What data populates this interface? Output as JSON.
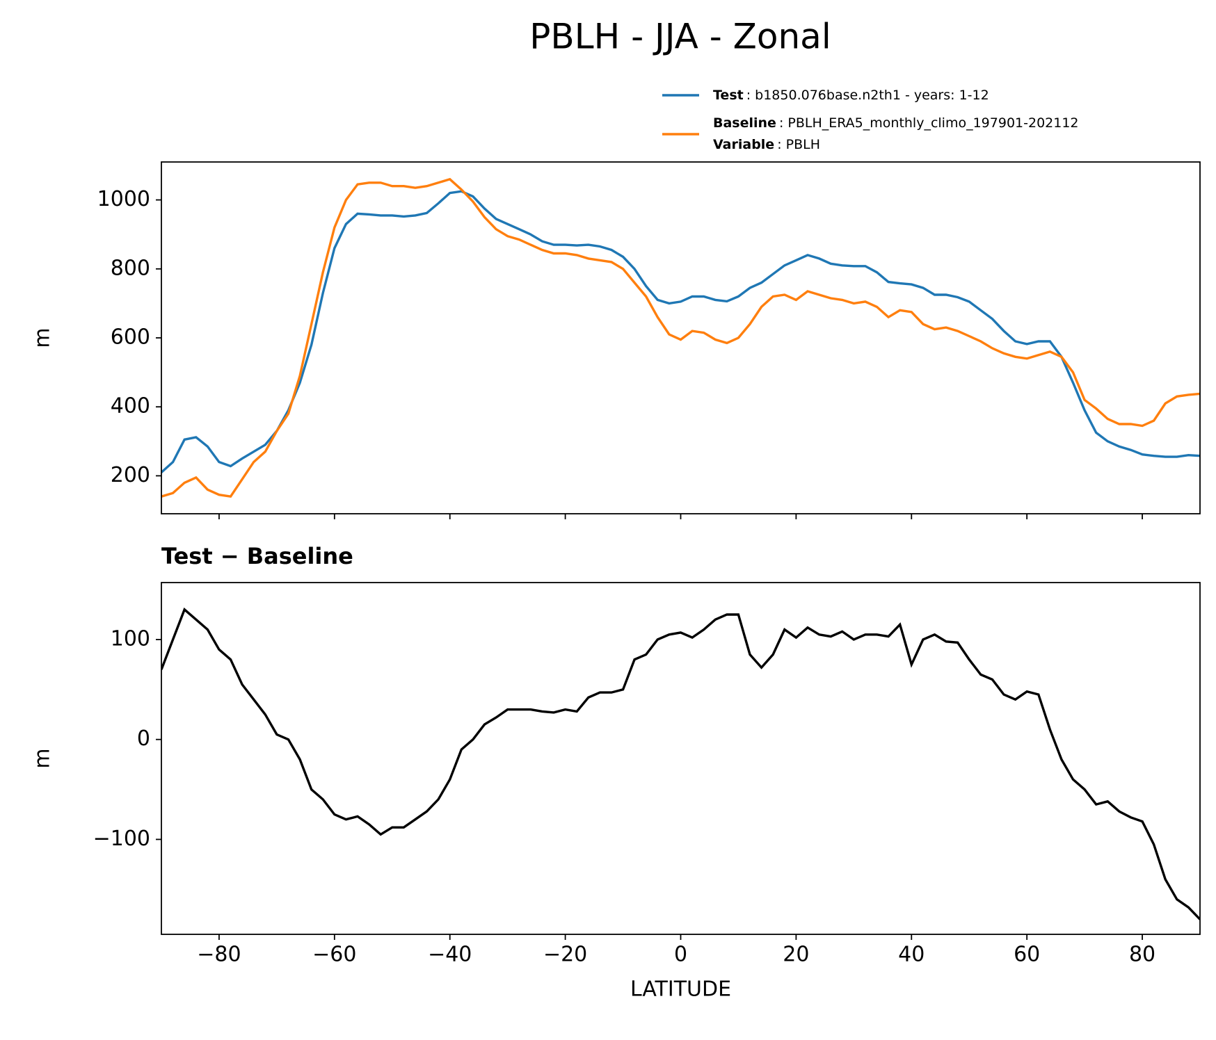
{
  "chart_data": [
    {
      "type": "line",
      "title": "PBLH - JJA - Zonal",
      "ylabel": "m",
      "x": [
        -90,
        -88,
        -86,
        -84,
        -82,
        -80,
        -78,
        -76,
        -74,
        -72,
        -70,
        -68,
        -66,
        -64,
        -62,
        -60,
        -58,
        -56,
        -54,
        -52,
        -50,
        -48,
        -46,
        -44,
        -42,
        -40,
        -38,
        -36,
        -34,
        -32,
        -30,
        -28,
        -26,
        -24,
        -22,
        -20,
        -18,
        -16,
        -14,
        -12,
        -10,
        -8,
        -6,
        -4,
        -2,
        0,
        2,
        4,
        6,
        8,
        10,
        12,
        14,
        16,
        18,
        20,
        22,
        24,
        26,
        28,
        30,
        32,
        34,
        36,
        38,
        40,
        42,
        44,
        46,
        48,
        50,
        52,
        54,
        56,
        58,
        60,
        62,
        64,
        66,
        68,
        70,
        72,
        74,
        76,
        78,
        80,
        82,
        84,
        86,
        88,
        90
      ],
      "series": [
        {
          "name": "Test",
          "label": ": b1850.076base.n2th1 - years: 1-12",
          "color": "#1f77b4",
          "values": [
            210,
            240,
            305,
            312,
            285,
            240,
            228,
            250,
            270,
            290,
            330,
            390,
            470,
            580,
            730,
            860,
            930,
            960,
            958,
            955,
            955,
            952,
            955,
            962,
            990,
            1020,
            1025,
            1010,
            975,
            945,
            930,
            915,
            900,
            880,
            870,
            870,
            868,
            870,
            865,
            855,
            835,
            800,
            750,
            710,
            700,
            705,
            720,
            720,
            710,
            706,
            720,
            745,
            760,
            785,
            810,
            825,
            840,
            830,
            815,
            810,
            808,
            808,
            790,
            762,
            758,
            755,
            745,
            725,
            725,
            718,
            705,
            680,
            655,
            620,
            590,
            582,
            590,
            590,
            545,
            470,
            390,
            325,
            300,
            285,
            275,
            262,
            258,
            255,
            255,
            260,
            258
          ]
        },
        {
          "name": "Baseline",
          "label": ": PBLH_ERA5_monthly_climo_197901-202112",
          "color": "#ff7f0e",
          "values": [
            140,
            150,
            180,
            195,
            160,
            145,
            140,
            190,
            240,
            270,
            330,
            380,
            490,
            640,
            790,
            920,
            1000,
            1045,
            1050,
            1050,
            1040,
            1040,
            1035,
            1040,
            1050,
            1060,
            1030,
            995,
            950,
            915,
            895,
            885,
            870,
            855,
            845,
            845,
            840,
            830,
            825,
            820,
            800,
            760,
            720,
            660,
            610,
            595,
            620,
            615,
            595,
            585,
            600,
            640,
            690,
            720,
            725,
            710,
            735,
            725,
            715,
            710,
            700,
            705,
            690,
            660,
            680,
            675,
            640,
            625,
            630,
            620,
            605,
            590,
            570,
            555,
            545,
            540,
            550,
            560,
            545,
            500,
            420,
            395,
            365,
            350,
            350,
            345,
            360,
            410,
            430,
            435,
            438
          ]
        }
      ],
      "legend_note": {
        "name": "Variable",
        "label": ": PBLH"
      },
      "xlim": [
        -90,
        90
      ],
      "xticks": [
        -80,
        -60,
        -40,
        -20,
        0,
        20,
        40,
        60,
        80
      ],
      "ylim": [
        90,
        1110
      ],
      "yticks": [
        200,
        400,
        600,
        800,
        1000
      ]
    },
    {
      "type": "line",
      "title": "Test − Baseline",
      "ylabel": "m",
      "xlabel": "LATITUDE",
      "x": [
        -90,
        -88,
        -86,
        -84,
        -82,
        -80,
        -78,
        -76,
        -74,
        -72,
        -70,
        -68,
        -66,
        -64,
        -62,
        -60,
        -58,
        -56,
        -54,
        -52,
        -50,
        -48,
        -46,
        -44,
        -42,
        -40,
        -38,
        -36,
        -34,
        -32,
        -30,
        -28,
        -26,
        -24,
        -22,
        -20,
        -18,
        -16,
        -14,
        -12,
        -10,
        -8,
        -6,
        -4,
        -2,
        0,
        2,
        4,
        6,
        8,
        10,
        12,
        14,
        16,
        18,
        20,
        22,
        24,
        26,
        28,
        30,
        32,
        34,
        36,
        38,
        40,
        42,
        44,
        46,
        48,
        50,
        52,
        54,
        56,
        58,
        60,
        62,
        64,
        66,
        68,
        70,
        72,
        74,
        76,
        78,
        80,
        82,
        84,
        86,
        88,
        90
      ],
      "series": [
        {
          "color": "#000000",
          "values": [
            70,
            100,
            130,
            120,
            110,
            90,
            80,
            55,
            40,
            25,
            5,
            0,
            -20,
            -50,
            -60,
            -75,
            -80,
            -77,
            -85,
            -95,
            -88,
            -88,
            -80,
            -72,
            -60,
            -40,
            -10,
            0,
            15,
            22,
            30,
            30,
            30,
            28,
            27,
            30,
            28,
            42,
            47,
            47,
            50,
            80,
            85,
            100,
            105,
            107,
            102,
            110,
            120,
            125,
            125,
            85,
            72,
            85,
            110,
            102,
            112,
            105,
            103,
            108,
            100,
            105,
            105,
            103,
            115,
            75,
            100,
            105,
            98,
            97,
            80,
            65,
            60,
            45,
            40,
            48,
            45,
            10,
            -20,
            -40,
            -50,
            -65,
            -62,
            -72,
            -78,
            -82,
            -105,
            -140,
            -160,
            -168,
            -180
          ]
        }
      ],
      "xlim": [
        -90,
        90
      ],
      "xticks": [
        {
          "value": -80,
          "label": "−80"
        },
        {
          "value": -60,
          "label": "−60"
        },
        {
          "value": -40,
          "label": "−40"
        },
        {
          "value": -20,
          "label": "−20"
        },
        0,
        20,
        40,
        60,
        80
      ],
      "ylim": [
        -195,
        157
      ],
      "yticks": [
        {
          "value": -100,
          "label": "−100"
        },
        0,
        100
      ]
    }
  ]
}
